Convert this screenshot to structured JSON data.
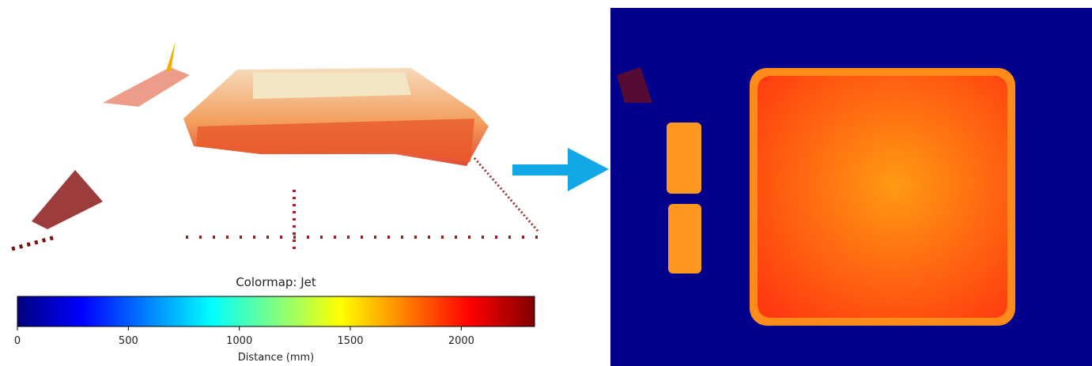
{
  "chart_data": {
    "type": "colorbar",
    "title": "Colormap: Jet",
    "xlabel": "Distance (mm)",
    "xlim": [
      0,
      2330
    ],
    "xticks": [
      0,
      500,
      1000,
      1500,
      2000
    ]
  }
}
